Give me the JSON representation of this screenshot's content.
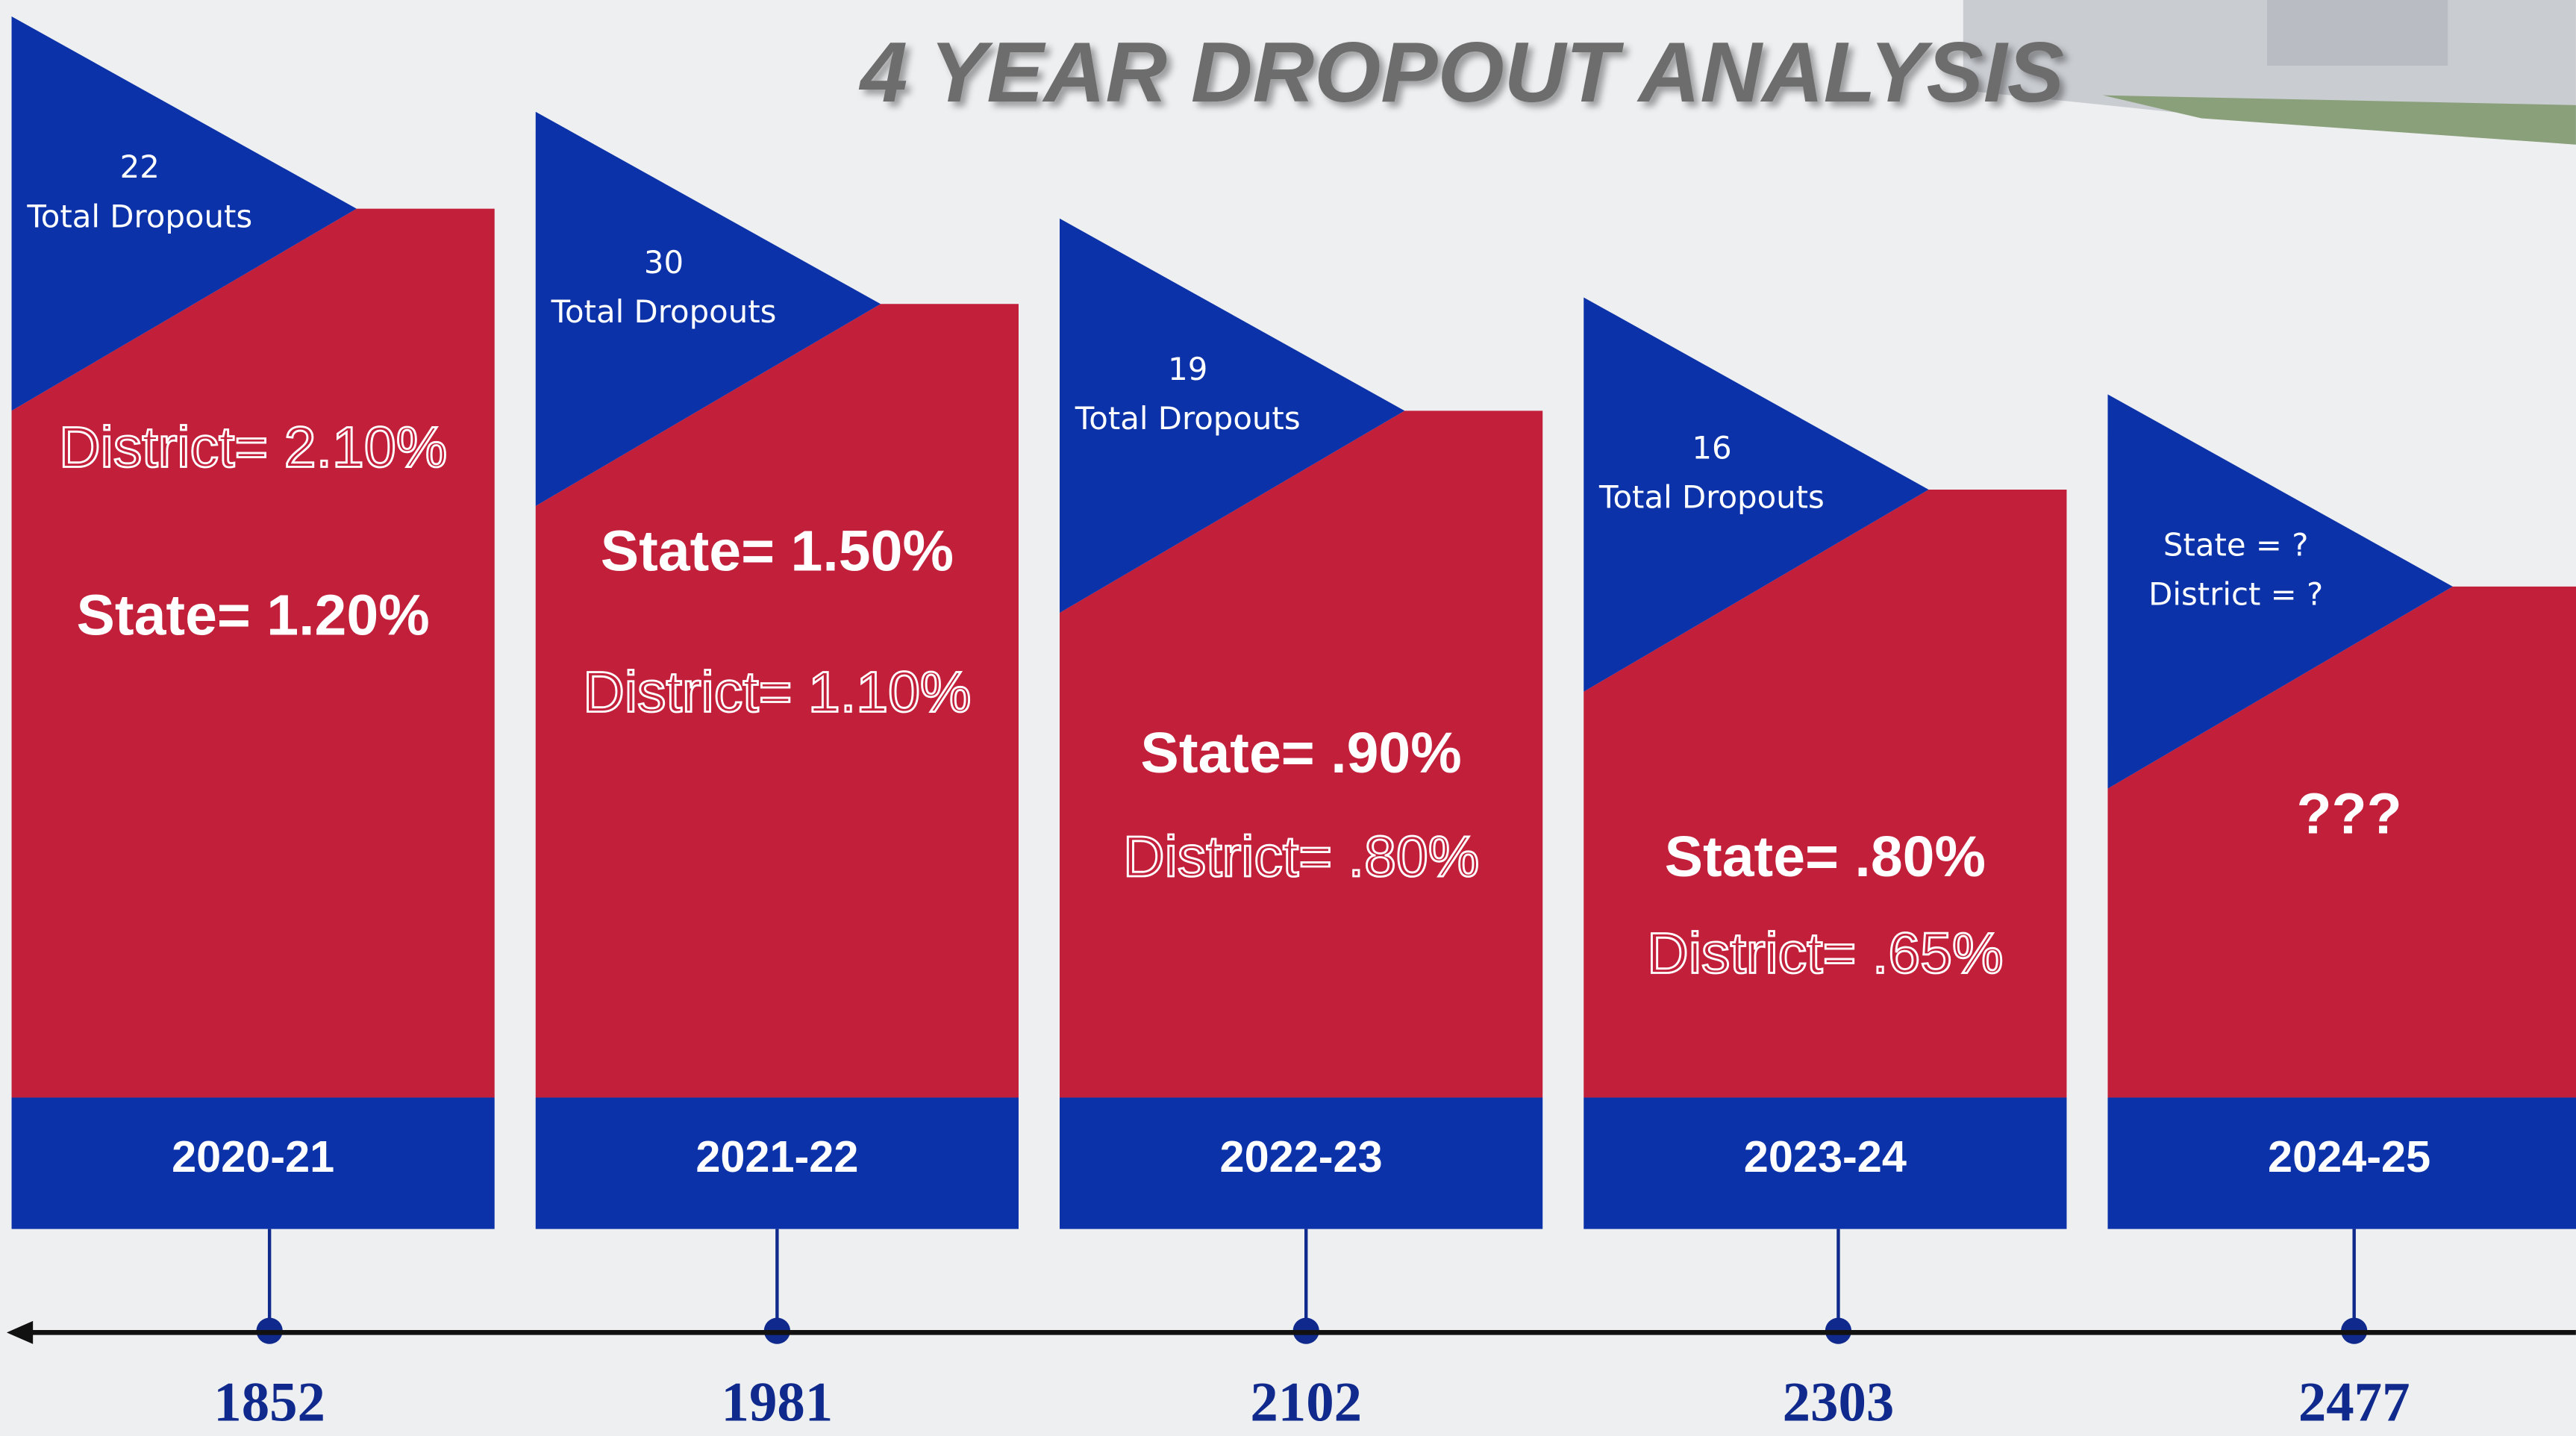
{
  "title": "4 YEAR DROPOUT ANALYSIS",
  "panels": [
    {
      "top": [
        "22",
        "Total Dropouts"
      ],
      "lines": [
        {
          "text": "District= 2.10%",
          "outline": true
        },
        {
          "text": "State= 1.20%",
          "outline": false
        }
      ],
      "year": "2020-21",
      "enrollment": "1852"
    },
    {
      "top": [
        "30",
        "Total Dropouts"
      ],
      "lines": [
        {
          "text": "State= 1.50%",
          "outline": false
        },
        {
          "text": "District= 1.10%",
          "outline": true
        }
      ],
      "year": "2021-22",
      "enrollment": "1981"
    },
    {
      "top": [
        "19",
        "Total Dropouts"
      ],
      "lines": [
        {
          "text": "State= .90%",
          "outline": false
        },
        {
          "text": "District= .80%",
          "outline": true
        }
      ],
      "year": "2022-23",
      "enrollment": "2102"
    },
    {
      "top": [
        "16",
        "Total Dropouts"
      ],
      "lines": [
        {
          "text": "State= .80%",
          "outline": false
        },
        {
          "text": "District= .65%",
          "outline": true
        }
      ],
      "year": "2023-24",
      "enrollment": "2303"
    },
    {
      "top": [
        "State = ?",
        "District = ?"
      ],
      "lines": [
        {
          "text": "???",
          "outline": false
        }
      ],
      "year": "2024-25",
      "enrollment": "2477"
    }
  ]
}
